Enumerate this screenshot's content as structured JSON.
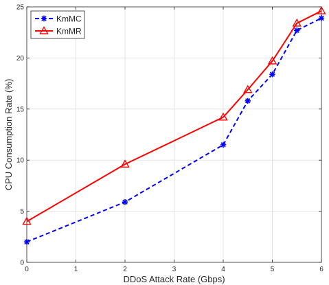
{
  "chart_data": {
    "type": "line",
    "title": "",
    "xlabel": "DDoS Attack Rate (Gbps)",
    "ylabel": "CPU Consumption Rate (%)",
    "xlim": [
      0,
      6
    ],
    "ylim": [
      0,
      25
    ],
    "xticks": [
      0,
      1,
      2,
      3,
      4,
      5,
      6
    ],
    "yticks": [
      0,
      5,
      10,
      15,
      20,
      25
    ],
    "grid": true,
    "legend_position": "top-left",
    "series": [
      {
        "name": "KmMC",
        "color": "#0000ff",
        "line_style": "dashed",
        "marker": "asterisk",
        "x": [
          0,
          2,
          4,
          4.5,
          5,
          5.5,
          6
        ],
        "y": [
          2.0,
          5.9,
          11.5,
          15.8,
          18.4,
          22.7,
          23.9
        ]
      },
      {
        "name": "KmMR",
        "color": "#ff0000",
        "line_style": "solid",
        "marker": "triangle",
        "x": [
          0,
          2,
          4,
          4.5,
          5,
          5.5,
          6
        ],
        "y": [
          4.0,
          9.6,
          14.2,
          16.9,
          19.7,
          23.4,
          24.6
        ]
      }
    ]
  }
}
